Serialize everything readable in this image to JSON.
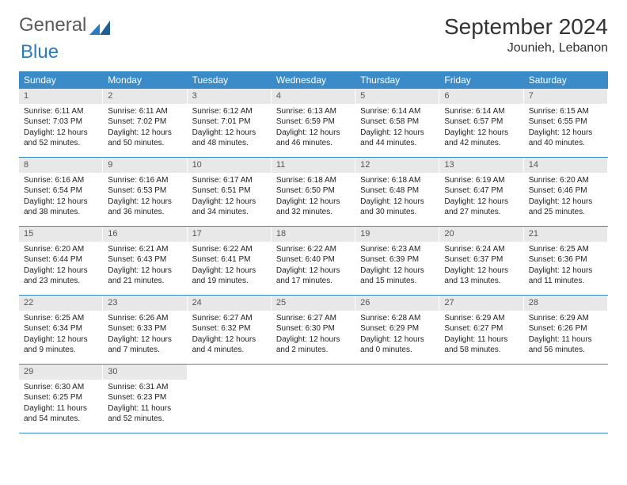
{
  "brand": {
    "part1": "General",
    "part2": "Blue"
  },
  "title": "September 2024",
  "location": "Jounieh, Lebanon",
  "colors": {
    "header_bg": "#3b8bc9",
    "header_text": "#ffffff",
    "daynum_bg": "#e8e8e8",
    "daynum_text": "#555555",
    "body_text": "#222222",
    "rule": "#3b8bc9",
    "brand_gray": "#5a5a5a",
    "brand_blue": "#2b7bbf"
  },
  "weekdays": [
    "Sunday",
    "Monday",
    "Tuesday",
    "Wednesday",
    "Thursday",
    "Friday",
    "Saturday"
  ],
  "weeks": [
    [
      {
        "n": "1",
        "sunrise": "Sunrise: 6:11 AM",
        "sunset": "Sunset: 7:03 PM",
        "daylight": "Daylight: 12 hours and 52 minutes."
      },
      {
        "n": "2",
        "sunrise": "Sunrise: 6:11 AM",
        "sunset": "Sunset: 7:02 PM",
        "daylight": "Daylight: 12 hours and 50 minutes."
      },
      {
        "n": "3",
        "sunrise": "Sunrise: 6:12 AM",
        "sunset": "Sunset: 7:01 PM",
        "daylight": "Daylight: 12 hours and 48 minutes."
      },
      {
        "n": "4",
        "sunrise": "Sunrise: 6:13 AM",
        "sunset": "Sunset: 6:59 PM",
        "daylight": "Daylight: 12 hours and 46 minutes."
      },
      {
        "n": "5",
        "sunrise": "Sunrise: 6:14 AM",
        "sunset": "Sunset: 6:58 PM",
        "daylight": "Daylight: 12 hours and 44 minutes."
      },
      {
        "n": "6",
        "sunrise": "Sunrise: 6:14 AM",
        "sunset": "Sunset: 6:57 PM",
        "daylight": "Daylight: 12 hours and 42 minutes."
      },
      {
        "n": "7",
        "sunrise": "Sunrise: 6:15 AM",
        "sunset": "Sunset: 6:55 PM",
        "daylight": "Daylight: 12 hours and 40 minutes."
      }
    ],
    [
      {
        "n": "8",
        "sunrise": "Sunrise: 6:16 AM",
        "sunset": "Sunset: 6:54 PM",
        "daylight": "Daylight: 12 hours and 38 minutes."
      },
      {
        "n": "9",
        "sunrise": "Sunrise: 6:16 AM",
        "sunset": "Sunset: 6:53 PM",
        "daylight": "Daylight: 12 hours and 36 minutes."
      },
      {
        "n": "10",
        "sunrise": "Sunrise: 6:17 AM",
        "sunset": "Sunset: 6:51 PM",
        "daylight": "Daylight: 12 hours and 34 minutes."
      },
      {
        "n": "11",
        "sunrise": "Sunrise: 6:18 AM",
        "sunset": "Sunset: 6:50 PM",
        "daylight": "Daylight: 12 hours and 32 minutes."
      },
      {
        "n": "12",
        "sunrise": "Sunrise: 6:18 AM",
        "sunset": "Sunset: 6:48 PM",
        "daylight": "Daylight: 12 hours and 30 minutes."
      },
      {
        "n": "13",
        "sunrise": "Sunrise: 6:19 AM",
        "sunset": "Sunset: 6:47 PM",
        "daylight": "Daylight: 12 hours and 27 minutes."
      },
      {
        "n": "14",
        "sunrise": "Sunrise: 6:20 AM",
        "sunset": "Sunset: 6:46 PM",
        "daylight": "Daylight: 12 hours and 25 minutes."
      }
    ],
    [
      {
        "n": "15",
        "sunrise": "Sunrise: 6:20 AM",
        "sunset": "Sunset: 6:44 PM",
        "daylight": "Daylight: 12 hours and 23 minutes."
      },
      {
        "n": "16",
        "sunrise": "Sunrise: 6:21 AM",
        "sunset": "Sunset: 6:43 PM",
        "daylight": "Daylight: 12 hours and 21 minutes."
      },
      {
        "n": "17",
        "sunrise": "Sunrise: 6:22 AM",
        "sunset": "Sunset: 6:41 PM",
        "daylight": "Daylight: 12 hours and 19 minutes."
      },
      {
        "n": "18",
        "sunrise": "Sunrise: 6:22 AM",
        "sunset": "Sunset: 6:40 PM",
        "daylight": "Daylight: 12 hours and 17 minutes."
      },
      {
        "n": "19",
        "sunrise": "Sunrise: 6:23 AM",
        "sunset": "Sunset: 6:39 PM",
        "daylight": "Daylight: 12 hours and 15 minutes."
      },
      {
        "n": "20",
        "sunrise": "Sunrise: 6:24 AM",
        "sunset": "Sunset: 6:37 PM",
        "daylight": "Daylight: 12 hours and 13 minutes."
      },
      {
        "n": "21",
        "sunrise": "Sunrise: 6:25 AM",
        "sunset": "Sunset: 6:36 PM",
        "daylight": "Daylight: 12 hours and 11 minutes."
      }
    ],
    [
      {
        "n": "22",
        "sunrise": "Sunrise: 6:25 AM",
        "sunset": "Sunset: 6:34 PM",
        "daylight": "Daylight: 12 hours and 9 minutes."
      },
      {
        "n": "23",
        "sunrise": "Sunrise: 6:26 AM",
        "sunset": "Sunset: 6:33 PM",
        "daylight": "Daylight: 12 hours and 7 minutes."
      },
      {
        "n": "24",
        "sunrise": "Sunrise: 6:27 AM",
        "sunset": "Sunset: 6:32 PM",
        "daylight": "Daylight: 12 hours and 4 minutes."
      },
      {
        "n": "25",
        "sunrise": "Sunrise: 6:27 AM",
        "sunset": "Sunset: 6:30 PM",
        "daylight": "Daylight: 12 hours and 2 minutes."
      },
      {
        "n": "26",
        "sunrise": "Sunrise: 6:28 AM",
        "sunset": "Sunset: 6:29 PM",
        "daylight": "Daylight: 12 hours and 0 minutes."
      },
      {
        "n": "27",
        "sunrise": "Sunrise: 6:29 AM",
        "sunset": "Sunset: 6:27 PM",
        "daylight": "Daylight: 11 hours and 58 minutes."
      },
      {
        "n": "28",
        "sunrise": "Sunrise: 6:29 AM",
        "sunset": "Sunset: 6:26 PM",
        "daylight": "Daylight: 11 hours and 56 minutes."
      }
    ],
    [
      {
        "n": "29",
        "sunrise": "Sunrise: 6:30 AM",
        "sunset": "Sunset: 6:25 PM",
        "daylight": "Daylight: 11 hours and 54 minutes."
      },
      {
        "n": "30",
        "sunrise": "Sunrise: 6:31 AM",
        "sunset": "Sunset: 6:23 PM",
        "daylight": "Daylight: 11 hours and 52 minutes."
      },
      null,
      null,
      null,
      null,
      null
    ]
  ]
}
